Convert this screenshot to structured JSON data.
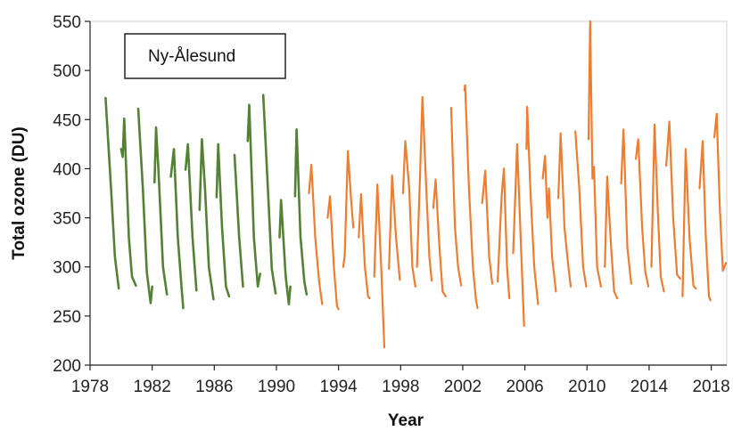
{
  "chart_data": {
    "type": "line",
    "title": "",
    "legend_box_label": "Ny-Ålesund",
    "xlabel": "Year",
    "ylabel": "Total ozone (DU)",
    "xlim": [
      1978,
      2019
    ],
    "ylim": [
      200,
      550
    ],
    "x_ticks": [
      "1978",
      "1982",
      "1986",
      "1990",
      "1994",
      "1998",
      "2002",
      "2006",
      "2010",
      "2014",
      "2018"
    ],
    "y_ticks": [
      "200",
      "250",
      "300",
      "350",
      "400",
      "450",
      "500",
      "550"
    ],
    "grid": false,
    "series": [
      {
        "color": "#548235",
        "segments": [
          [
            [
              1979.0,
              472
            ],
            [
              1979.35,
              380
            ],
            [
              1979.6,
              310
            ],
            [
              1979.85,
              278
            ]
          ],
          [
            [
              1980.0,
              420
            ],
            [
              1980.1,
              412
            ],
            [
              1980.2,
              451
            ],
            [
              1980.5,
              330
            ],
            [
              1980.7,
              290
            ],
            [
              1980.95,
              281
            ]
          ],
          [
            [
              1981.1,
              461
            ],
            [
              1981.4,
              380
            ],
            [
              1981.65,
              295
            ],
            [
              1981.9,
              263
            ],
            [
              1982.0,
              280
            ]
          ],
          [
            [
              1982.15,
              386
            ],
            [
              1982.25,
              442
            ],
            [
              1982.4,
              400
            ],
            [
              1982.7,
              300
            ],
            [
              1982.95,
              272
            ]
          ],
          [
            [
              1983.2,
              392
            ],
            [
              1983.4,
              420
            ],
            [
              1983.65,
              330
            ],
            [
              1983.9,
              278
            ],
            [
              1984.0,
              258
            ]
          ],
          [
            [
              1984.15,
              399
            ],
            [
              1984.3,
              425
            ],
            [
              1984.6,
              330
            ],
            [
              1984.85,
              276
            ]
          ],
          [
            [
              1985.05,
              358
            ],
            [
              1985.2,
              430
            ],
            [
              1985.4,
              380
            ],
            [
              1985.65,
              300
            ],
            [
              1985.95,
              267
            ]
          ],
          [
            [
              1986.15,
              371
            ],
            [
              1986.25,
              425
            ],
            [
              1986.5,
              340
            ],
            [
              1986.75,
              280
            ],
            [
              1986.95,
              270
            ]
          ],
          [
            [
              1987.3,
              414
            ],
            [
              1987.6,
              330
            ],
            [
              1987.85,
              280
            ]
          ],
          [
            [
              1988.15,
              428
            ],
            [
              1988.25,
              465
            ],
            [
              1988.55,
              330
            ],
            [
              1988.8,
              280
            ],
            [
              1988.95,
              293
            ]
          ],
          [
            [
              1989.15,
              475
            ],
            [
              1989.45,
              380
            ],
            [
              1989.7,
              298
            ],
            [
              1989.95,
              273
            ]
          ],
          [
            [
              1990.2,
              330
            ],
            [
              1990.3,
              368
            ],
            [
              1990.6,
              290
            ],
            [
              1990.8,
              262
            ],
            [
              1990.9,
              280
            ]
          ],
          [
            [
              1991.2,
              372
            ],
            [
              1991.3,
              440
            ],
            [
              1991.55,
              330
            ],
            [
              1991.8,
              285
            ],
            [
              1991.95,
              272
            ]
          ]
        ]
      },
      {
        "color": "#ed7d31",
        "segments": [
          [
            [
              1992.1,
              375
            ],
            [
              1992.25,
              404
            ],
            [
              1992.5,
              330
            ],
            [
              1992.75,
              285
            ],
            [
              1992.95,
              262
            ]
          ],
          [
            [
              1993.3,
              350
            ],
            [
              1993.45,
              372
            ],
            [
              1993.7,
              300
            ],
            [
              1993.9,
              260
            ],
            [
              1994.0,
              257
            ]
          ],
          [
            [
              1994.3,
              300
            ],
            [
              1994.4,
              312
            ],
            [
              1994.6,
              418
            ],
            [
              1994.8,
              370
            ],
            [
              1994.95,
              340
            ]
          ],
          [
            [
              1995.3,
              330
            ],
            [
              1995.45,
              374
            ],
            [
              1995.7,
              300
            ],
            [
              1995.9,
              270
            ],
            [
              1996.0,
              268
            ]
          ],
          [
            [
              1996.3,
              290
            ],
            [
              1996.5,
              384
            ],
            [
              1996.75,
              300
            ],
            [
              1996.95,
              218
            ]
          ],
          [
            [
              1997.25,
              298
            ],
            [
              1997.45,
              393
            ],
            [
              1997.7,
              330
            ],
            [
              1997.95,
              287
            ]
          ],
          [
            [
              1998.15,
              375
            ],
            [
              1998.3,
              428
            ],
            [
              1998.55,
              380
            ],
            [
              1998.75,
              300
            ],
            [
              1998.95,
              280
            ]
          ],
          [
            [
              1999.05,
              300
            ],
            [
              1999.25,
              395
            ],
            [
              1999.4,
              473
            ],
            [
              1999.65,
              380
            ],
            [
              1999.85,
              310
            ],
            [
              2000.0,
              286
            ]
          ],
          [
            [
              2000.1,
              360
            ],
            [
              2000.25,
              389
            ],
            [
              2000.5,
              320
            ],
            [
              2000.7,
              275
            ],
            [
              2000.9,
              270
            ]
          ],
          [
            [
              2001.25,
              462
            ],
            [
              2001.5,
              340
            ],
            [
              2001.7,
              300
            ],
            [
              2001.9,
              281
            ]
          ],
          [
            [
              2002.1,
              480
            ],
            [
              2002.15,
              485
            ],
            [
              2002.4,
              380
            ],
            [
              2002.65,
              300
            ],
            [
              2002.85,
              266
            ],
            [
              2002.95,
              258
            ]
          ],
          [
            [
              2003.25,
              365
            ],
            [
              2003.45,
              398
            ],
            [
              2003.7,
              310
            ],
            [
              2003.9,
              283
            ]
          ],
          [
            [
              2004.25,
              285
            ],
            [
              2004.5,
              372
            ],
            [
              2004.65,
              400
            ],
            [
              2004.85,
              300
            ],
            [
              2005.0,
              268
            ]
          ],
          [
            [
              2005.25,
              314
            ],
            [
              2005.5,
              425
            ],
            [
              2005.75,
              320
            ],
            [
              2005.95,
              240
            ]
          ],
          [
            [
              2006.1,
              420
            ],
            [
              2006.15,
              463
            ],
            [
              2006.35,
              380
            ],
            [
              2006.6,
              300
            ],
            [
              2006.85,
              262
            ]
          ],
          [
            [
              2007.15,
              390
            ],
            [
              2007.3,
              413
            ],
            [
              2007.45,
              350
            ],
            [
              2007.55,
              380
            ],
            [
              2007.75,
              310
            ],
            [
              2008.0,
              275
            ]
          ],
          [
            [
              2008.15,
              370
            ],
            [
              2008.3,
              436
            ],
            [
              2008.55,
              340
            ],
            [
              2008.8,
              300
            ],
            [
              2008.95,
              280
            ]
          ],
          [
            [
              2009.25,
              438
            ],
            [
              2009.5,
              380
            ],
            [
              2009.75,
              300
            ],
            [
              2009.95,
              280
            ]
          ],
          [
            [
              2010.1,
              430
            ],
            [
              2010.2,
              550
            ],
            [
              2010.35,
              390
            ],
            [
              2010.45,
              402
            ],
            [
              2010.65,
              300
            ],
            [
              2010.9,
              280
            ]
          ],
          [
            [
              2011.15,
              300
            ],
            [
              2011.3,
              392
            ],
            [
              2011.55,
              320
            ],
            [
              2011.75,
              275
            ],
            [
              2011.95,
              268
            ]
          ],
          [
            [
              2012.2,
              385
            ],
            [
              2012.35,
              440
            ],
            [
              2012.6,
              320
            ],
            [
              2012.85,
              283
            ]
          ],
          [
            [
              2013.15,
              410
            ],
            [
              2013.3,
              430
            ],
            [
              2013.55,
              340
            ],
            [
              2013.75,
              295
            ],
            [
              2013.95,
              280
            ]
          ],
          [
            [
              2014.15,
              300
            ],
            [
              2014.35,
              445
            ],
            [
              2014.55,
              360
            ],
            [
              2014.75,
              290
            ],
            [
              2014.95,
              275
            ]
          ],
          [
            [
              2015.1,
              403
            ],
            [
              2015.3,
              448
            ],
            [
              2015.55,
              350
            ],
            [
              2015.8,
              292
            ],
            [
              2016.0,
              288
            ]
          ],
          [
            [
              2016.15,
              270
            ],
            [
              2016.35,
              420
            ],
            [
              2016.6,
              330
            ],
            [
              2016.85,
              281
            ],
            [
              2017.0,
              278
            ]
          ],
          [
            [
              2017.25,
              380
            ],
            [
              2017.45,
              428
            ],
            [
              2017.65,
              330
            ],
            [
              2017.85,
              270
            ],
            [
              2017.95,
              266
            ]
          ],
          [
            [
              2018.2,
              432
            ],
            [
              2018.35,
              456
            ],
            [
              2018.55,
              360
            ],
            [
              2018.75,
              296
            ],
            [
              2018.95,
              304
            ]
          ]
        ]
      }
    ]
  }
}
